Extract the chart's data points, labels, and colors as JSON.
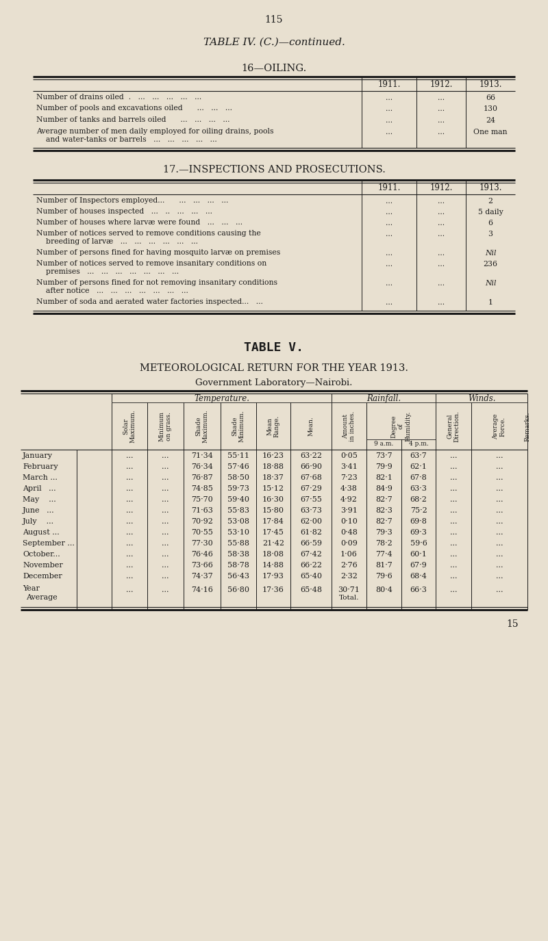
{
  "bg_color": "#e8e0d0",
  "page_number": "115",
  "table4_title": "TABLE IV. (C.)—continued.",
  "section16_title": "16—OILING.",
  "section17_title": "17.—INSPECTIONS AND PROSECUTIONS.",
  "oiling_rows": [
    [
      "Number of drains oiled  .   ...   ...   ...   ...   ...",
      "...",
      "...",
      "66"
    ],
    [
      "Number of pools and excavations oiled      ...   ...   ...",
      "...",
      "...",
      "130"
    ],
    [
      "Number of tanks and barrels oiled      ...   ...   ...   ...",
      "...",
      "...",
      "24"
    ],
    [
      "Average number of men daily employed for oiling drains, pools\n    and water-tanks or barrels   ...   ...   ...   ...   ...",
      "...",
      "...",
      "One man"
    ]
  ],
  "inspections_rows": [
    [
      "Number of Inspectors employed...      ...   ...   ...   ...",
      "...",
      "...",
      "2"
    ],
    [
      "Number of houses inspected   ...   ..   ...   ...   ...",
      "...",
      "...",
      "5 daily"
    ],
    [
      "Number of houses where larvæ were found   ...   ...   ...",
      "...",
      "...",
      "6"
    ],
    [
      "Number of notices served to remove conditions causing the\n    breeding of larvæ   ...   ...   ...   ...   ...   ...",
      "...",
      "...",
      "3"
    ],
    [
      "Number of persons fined for having mosquito larvæ on premises",
      "...",
      "...",
      "Nil"
    ],
    [
      "Number of notices served to remove insanitary conditions on\n    premises   ...   ...   ...   ...   ...   ...   ...",
      "...",
      "...",
      "236"
    ],
    [
      "Number of persons fined for not removing insanitary conditions\n    after notice   ...   ...   ...   ...   ...   ...   ...",
      "...",
      "...",
      "Nil"
    ],
    [
      "Number of soda and aerated water factories inspected...   ...",
      "...",
      "...",
      "1"
    ]
  ],
  "table5_title": "TABLE V.",
  "met_title": "METEOROLOGICAL RETURN FOR THE YEAR 1913.",
  "met_subtitle": "Government Laboratory—Nairobi.",
  "met_months": [
    "January",
    "February",
    "March ...",
    "April   ...",
    "May    ...",
    "June   ...",
    "July    ...",
    "August ...",
    "September ...",
    "October...",
    "November",
    "December"
  ],
  "met_data": [
    [
      "...",
      "...",
      "71·34",
      "55·11",
      "16·23",
      "63·22",
      "0·05",
      "73·7",
      "63·7",
      "...",
      "..."
    ],
    [
      "...",
      "...",
      "76·34",
      "57·46",
      "18·88",
      "66·90",
      "3·41",
      "79·9",
      "62·1",
      "...",
      "..."
    ],
    [
      "...",
      "...",
      "76·87",
      "58·50",
      "18·37",
      "67·68",
      "7·23",
      "82·1",
      "67·8",
      "...",
      "..."
    ],
    [
      "...",
      "...",
      "74·85",
      "59·73",
      "15·12",
      "67·29",
      "4·38",
      "84·9",
      "63·3",
      "...",
      "..."
    ],
    [
      "...",
      "...",
      "75·70",
      "59·40",
      "16·30",
      "67·55",
      "4·92",
      "82·7",
      "68·2",
      "...",
      "..."
    ],
    [
      "...",
      "...",
      "71·63",
      "55·83",
      "15·80",
      "63·73",
      "3·91",
      "82·3",
      "75·2",
      "...",
      "..."
    ],
    [
      "...",
      "...",
      "70·92",
      "53·08",
      "17·84",
      "62·00",
      "0·10",
      "82·7",
      "69·8",
      "...",
      "..."
    ],
    [
      "...",
      "...",
      "70·55",
      "53·10",
      "17·45",
      "61·82",
      "0·48",
      "79·3",
      "69·3",
      "...",
      "..."
    ],
    [
      "...",
      "...",
      "77·30",
      "55·88",
      "21·42",
      "66·59",
      "0·09",
      "78·2",
      "59·6",
      "...",
      "..."
    ],
    [
      "...",
      "...",
      "76·46",
      "58·38",
      "18·08",
      "67·42",
      "1·06",
      "77·4",
      "60·1",
      "...",
      "..."
    ],
    [
      "...",
      "...",
      "73·66",
      "58·78",
      "14·88",
      "66·22",
      "2·76",
      "81·7",
      "67·9",
      "...",
      "..."
    ],
    [
      "...",
      "...",
      "74·37",
      "56·43",
      "17·93",
      "65·40",
      "2·32",
      "79·6",
      "68·4",
      "...",
      "..."
    ]
  ],
  "met_avg_row": [
    "...",
    "...",
    "74·16",
    "56·80",
    "17·36",
    "65·48",
    "30·71",
    "80·4",
    "66·3",
    "...",
    "..."
  ],
  "page_footer": "15"
}
